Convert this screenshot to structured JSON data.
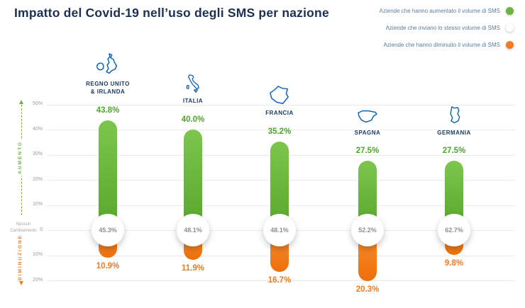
{
  "title": "Impatto del Covid-19 nell’uso degli SMS per nazione",
  "legend": {
    "items": [
      {
        "label": "Aziende che hanno aumentato il volume di SMS",
        "color": "#6CB33F"
      },
      {
        "label": "Aziende che inviano lo stesso volume di SMS",
        "color": "#FFFFFF"
      },
      {
        "label": "Aziende che hanno diminuito il volume di SMS",
        "color": "#F47B20"
      }
    ]
  },
  "axis": {
    "up_label": "AUMENTO",
    "down_label": "DIMINUZIONE",
    "zero_label": "Nessun Cambiamento",
    "tick_values": [
      50,
      40,
      30,
      20,
      10,
      0,
      -10,
      -20
    ],
    "tick_labels": [
      "50%",
      "40%",
      "30%",
      "20%",
      "10%",
      "0",
      "10%",
      "20%"
    ]
  },
  "chart_data": {
    "type": "bar",
    "categories": [
      "Regno Unito & Irlanda",
      "Italia",
      "Francia",
      "Spagna",
      "Germania"
    ],
    "series": [
      {
        "name": "Aziende che hanno aumentato il volume di SMS",
        "values": [
          43.8,
          40.0,
          35.2,
          27.5,
          27.5
        ]
      },
      {
        "name": "Aziende che inviano lo stesso volume di SMS",
        "values": [
          45.3,
          48.1,
          48.1,
          52.2,
          62.7
        ]
      },
      {
        "name": "Aziende che hanno diminuito il volume di SMS",
        "values": [
          10.9,
          11.9,
          16.7,
          20.3,
          9.8
        ]
      }
    ],
    "title": "Impatto del Covid-19 nell’uso degli SMS per nazione",
    "xlabel": "",
    "ylabel": "",
    "ylim": [
      -20,
      50
    ],
    "grid": true,
    "legend_position": "top-right",
    "value_suffix": "%"
  },
  "countries": [
    {
      "name": "REGNO UNITO\n& IRLANDA",
      "increase": "43.8%",
      "same": "45.3%",
      "decrease": "10.9%"
    },
    {
      "name": "ITALIA",
      "increase": "40.0%",
      "same": "48.1%",
      "decrease": "11.9%"
    },
    {
      "name": "FRANCIA",
      "increase": "35.2%",
      "same": "48.1%",
      "decrease": "16.7%"
    },
    {
      "name": "SPAGNA",
      "increase": "27.5%",
      "same": "52.2%",
      "decrease": "20.3%"
    },
    {
      "name": "GERMANIA",
      "increase": "27.5%",
      "same": "62.7%",
      "decrease": "9.8%"
    }
  ],
  "colors": {
    "green": "#6CB33F",
    "green_text": "#4CA62C",
    "orange": "#F47B20",
    "navy_title": "#1D3050",
    "navy_label": "#1C3A63",
    "map_blue": "#1464B4",
    "circle_text": "#8F8F8F",
    "legend_text": "#5C7CA2"
  }
}
